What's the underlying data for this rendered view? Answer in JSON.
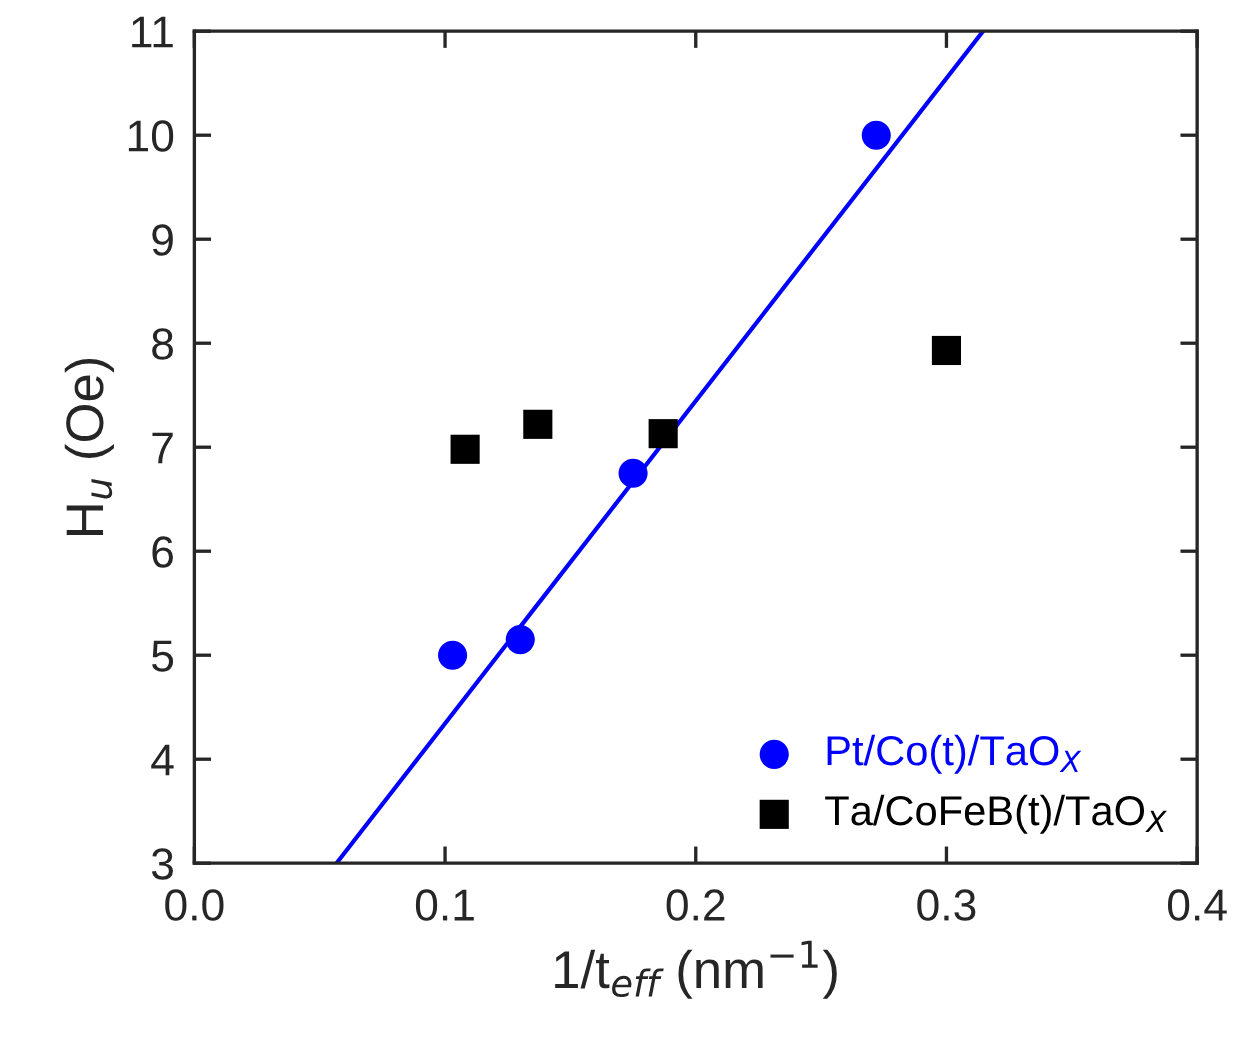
{
  "chart_data": {
    "type": "scatter",
    "xlabel": "1/t$_{eff}$ (nm$^{−1}$)",
    "ylabel": "H$_{u}$ (Oe)",
    "xlim": [
      0.0,
      0.4
    ],
    "xticks": [
      {
        "value": 0.0,
        "label": "0.0"
      },
      0.1,
      0.2,
      0.3,
      0.4
    ],
    "ylim": [
      3,
      11
    ],
    "yticks": [
      3,
      4,
      5,
      6,
      7,
      8,
      9,
      10,
      11
    ],
    "grid": false,
    "legend": "bottom right",
    "series": [
      {
        "name": "Pt/Co(t)/TaO$_{X}$",
        "color": "#0000ff",
        "marker": "circle",
        "x": [
          0.103,
          0.13,
          0.175,
          0.272
        ],
        "values": [
          5.0,
          5.15,
          6.75,
          10.0
        ]
      },
      {
        "name": "Ta/CoFeB(t)/TaO$_{X}$",
        "color": "#000000",
        "marker": "square",
        "x": [
          0.108,
          0.137,
          0.187,
          0.3
        ],
        "values": [
          6.98,
          7.22,
          7.13,
          7.93
        ]
      },
      {
        "type": "line",
        "color": "#0000ff",
        "line_style": "solid",
        "x": [
          0.0567,
          0.3146
        ],
        "values": [
          3,
          11
        ]
      }
    ]
  }
}
